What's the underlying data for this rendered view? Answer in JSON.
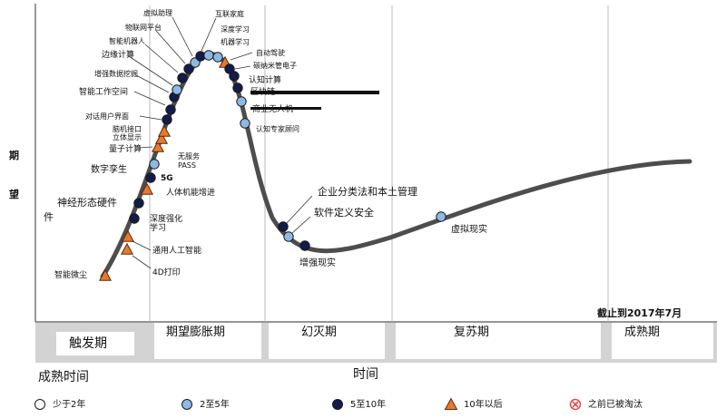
{
  "chart_data": {
    "type": "line",
    "ylabel": "期望",
    "xlabel": "时间",
    "note": "截止到2017年7月",
    "phases": [
      {
        "name": "触发期"
      },
      {
        "name": "期望膨胀期"
      },
      {
        "name": "幻灭期"
      },
      {
        "name": "复苏期"
      },
      {
        "name": "成熟期"
      }
    ],
    "legend_title": "成熟时间",
    "legend": [
      {
        "key": "lt2",
        "label": "少于2年",
        "marker": "circle",
        "fill": "#ffffff"
      },
      {
        "key": "y2to5",
        "label": "2至5年",
        "marker": "circle",
        "fill": "#8db9e2"
      },
      {
        "key": "y5to10",
        "label": "5至10年",
        "marker": "circle",
        "fill": "#131b4a"
      },
      {
        "key": "gt10",
        "label": "10年以后",
        "marker": "triangle",
        "fill": "#e8792b"
      },
      {
        "key": "obsolete",
        "label": "之前已被淘汰",
        "marker": "cross",
        "fill": "#e04848"
      }
    ],
    "technologies": [
      {
        "name": "智能微尘",
        "maturity": "gt10"
      },
      {
        "name": "4D打印",
        "maturity": "gt10"
      },
      {
        "name": "通用人工智能",
        "maturity": "gt10"
      },
      {
        "name": "深度强化学习",
        "maturity": "y5to10"
      },
      {
        "name": "神经形态硬件",
        "maturity": "y5to10"
      },
      {
        "name": "人体机能增进",
        "maturity": "gt10"
      },
      {
        "name": "数字孪生",
        "maturity": "y5to10"
      },
      {
        "name": "5G",
        "maturity": "y5to10"
      },
      {
        "name": "无服务PASS",
        "maturity": "y2to5"
      },
      {
        "name": "量子计算",
        "maturity": "gt10"
      },
      {
        "name": "立体显示",
        "maturity": "gt10"
      },
      {
        "name": "脑机接口",
        "maturity": "gt10"
      },
      {
        "name": "对话用户界面",
        "maturity": "y5to10"
      },
      {
        "name": "智能工作空间",
        "maturity": "y5to10"
      },
      {
        "name": "增强数据挖掘",
        "maturity": "y5to10"
      },
      {
        "name": "边缘计算",
        "maturity": "y2to5"
      },
      {
        "name": "智能机器人",
        "maturity": "y5to10"
      },
      {
        "name": "物联网平台",
        "maturity": "y5to10"
      },
      {
        "name": "虚拟助理",
        "maturity": "y2to5"
      },
      {
        "name": "互联家庭",
        "maturity": "y5to10"
      },
      {
        "name": "深度学习",
        "maturity": "y2to5"
      },
      {
        "name": "机器学习",
        "maturity": "y2to5"
      },
      {
        "name": "自动驾驶",
        "maturity": "gt10"
      },
      {
        "name": "碳纳米管电子",
        "maturity": "y5to10"
      },
      {
        "name": "认知计算",
        "maturity": "y5to10"
      },
      {
        "name": "区块链",
        "maturity": "y5to10"
      },
      {
        "name": "商业无人机",
        "maturity": "y2to5"
      },
      {
        "name": "认知专家顾问",
        "maturity": "y2to5"
      },
      {
        "name": "企业分类法和本土管理",
        "maturity": "y5to10"
      },
      {
        "name": "软件定义安全",
        "maturity": "y2to5"
      },
      {
        "name": "增强现实",
        "maturity": "y5to10"
      },
      {
        "name": "虚拟现实",
        "maturity": "y2to5"
      }
    ]
  }
}
